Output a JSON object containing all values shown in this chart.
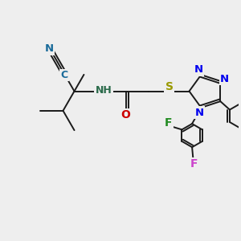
{
  "bg_color": "#eeeeee",
  "bond_color": "#1a1a1a",
  "lw": 1.4,
  "figsize": [
    3.0,
    3.0
  ],
  "dpi": 100,
  "xlim": [
    -1.0,
    9.5
  ],
  "ylim": [
    -4.5,
    3.5
  ],
  "N_color": "#0000ee",
  "N_cyan_color": "#1a6b9a",
  "NH_color": "#2a6a4a",
  "O_color": "#cc0000",
  "S_color": "#999900",
  "F1_color": "#228B22",
  "F2_color": "#cc44cc"
}
